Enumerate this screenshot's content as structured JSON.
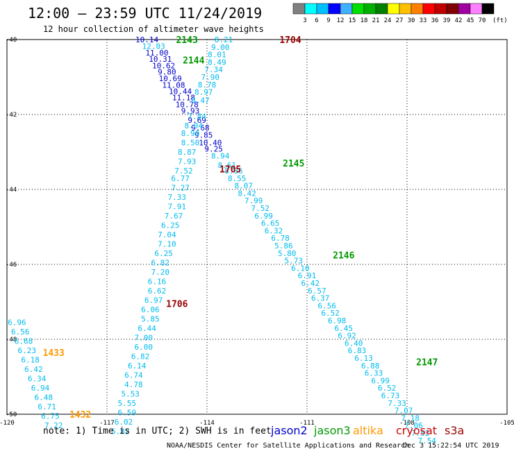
{
  "header": {
    "title": "12:00 – 23:59 UTC 11/24/2019",
    "subtitle": "12 hour collection of altimeter wave heights"
  },
  "colorbar": {
    "unit": "(ft)",
    "labels": [
      "3",
      "6",
      "9",
      "12",
      "15",
      "18",
      "21",
      "24",
      "27",
      "30",
      "33",
      "36",
      "39",
      "42",
      "45",
      "70"
    ],
    "colors": [
      "#808080",
      "#00ffff",
      "#00bfff",
      "#0000ff",
      "#40b0ff",
      "#00e000",
      "#00b000",
      "#008000",
      "#ffff00",
      "#ffc000",
      "#ff8000",
      "#ff0000",
      "#c00000",
      "#800000",
      "#a000a0",
      "#ff80ff",
      "#000000"
    ]
  },
  "footer": {
    "note": "note:  1) Time is in UTC;  2) SWH is in feet",
    "satellites": [
      {
        "name": "jason2",
        "color": "#0000cc"
      },
      {
        "name": "jason3",
        "color": "#009900"
      },
      {
        "name": "altika",
        "color": "#ff9900"
      },
      {
        "name": "cryosat",
        "color": "#cc0000"
      },
      {
        "name": "s3a",
        "color": "#990000"
      }
    ],
    "credit": "NOAA/NESDIS Center for Satellite Applications and Research",
    "timestamp": "Dec  3 15:22:54 UTC 2019"
  },
  "chart_data": {
    "type": "scatter",
    "title": "12:00 – 23:59 UTC 11/24/2019",
    "subtitle": "12 hour collection of altimeter wave heights",
    "xlim": [
      -120,
      -105
    ],
    "ylim": [
      -50,
      -40
    ],
    "x_ticks": [
      -120,
      -117,
      -114,
      -111,
      -108,
      -105
    ],
    "y_ticks": [
      -40,
      -42,
      -44,
      -46,
      -48,
      -50
    ],
    "grid": true,
    "unit": "ft",
    "track_labels": [
      {
        "text": "2143",
        "lon": -114.6,
        "lat": -40.0,
        "sat": "jason3"
      },
      {
        "text": "1704",
        "lon": -111.5,
        "lat": -40.0,
        "sat": "s3a"
      },
      {
        "text": "2144",
        "lon": -114.4,
        "lat": -40.55,
        "sat": "jason3"
      },
      {
        "text": "1705",
        "lon": -113.3,
        "lat": -43.45,
        "sat": "s3a"
      },
      {
        "text": "2145",
        "lon": -111.4,
        "lat": -43.3,
        "sat": "jason3"
      },
      {
        "text": "2146",
        "lon": -109.9,
        "lat": -45.75,
        "sat": "jason3"
      },
      {
        "text": "1706",
        "lon": -114.9,
        "lat": -47.05,
        "sat": "s3a"
      },
      {
        "text": "1433",
        "lon": -118.6,
        "lat": -48.35,
        "sat": "altika"
      },
      {
        "text": "2147",
        "lon": -107.4,
        "lat": -48.6,
        "sat": "jason3"
      },
      {
        "text": "1432",
        "lon": -117.8,
        "lat": -50.0,
        "sat": "altika"
      }
    ],
    "series": [
      {
        "name": "jason2",
        "color": "#0000cc",
        "points": [
          {
            "lon": -115.8,
            "lat": -40.0,
            "v": "10.14"
          },
          {
            "lon": -115.5,
            "lat": -40.35,
            "v": "11.00"
          },
          {
            "lon": -115.4,
            "lat": -40.52,
            "v": "10.31"
          },
          {
            "lon": -115.3,
            "lat": -40.69,
            "v": "10.62"
          },
          {
            "lon": -115.2,
            "lat": -40.86,
            "v": "9.80"
          },
          {
            "lon": -115.1,
            "lat": -41.04,
            "v": "10.69"
          },
          {
            "lon": -115.0,
            "lat": -41.21,
            "v": "11.08"
          },
          {
            "lon": -114.8,
            "lat": -41.38,
            "v": "10.44"
          },
          {
            "lon": -114.7,
            "lat": -41.55,
            "v": "11.18"
          },
          {
            "lon": -114.6,
            "lat": -41.73,
            "v": "10.78"
          },
          {
            "lon": -114.5,
            "lat": -41.9,
            "v": "9.93"
          },
          {
            "lon": -114.3,
            "lat": -42.15,
            "v": "9.69"
          },
          {
            "lon": -114.2,
            "lat": -42.35,
            "v": "9.68"
          },
          {
            "lon": -114.1,
            "lat": -42.55,
            "v": "9.85"
          },
          {
            "lon": -113.9,
            "lat": -42.75,
            "v": "10.40"
          },
          {
            "lon": -113.8,
            "lat": -42.92,
            "v": "9.25"
          }
        ]
      },
      {
        "name": "jason3",
        "color": "#00bbee",
        "points": [
          {
            "lon": -115.6,
            "lat": -40.18,
            "v": "12.03"
          }
        ]
      },
      {
        "name": "s3a",
        "color": "#00bbee",
        "points": [
          {
            "lon": -113.5,
            "lat": -40.0,
            "v": "8.21"
          },
          {
            "lon": -113.6,
            "lat": -40.2,
            "v": "9.00"
          },
          {
            "lon": -113.7,
            "lat": -40.4,
            "v": "8.01"
          },
          {
            "lon": -113.7,
            "lat": -40.6,
            "v": "8.49"
          },
          {
            "lon": -113.8,
            "lat": -40.8,
            "v": "7.34"
          },
          {
            "lon": -113.9,
            "lat": -41.0,
            "v": "7.90"
          },
          {
            "lon": -114.0,
            "lat": -41.2,
            "v": "8.78"
          },
          {
            "lon": -114.1,
            "lat": -41.4,
            "v": "8.97"
          },
          {
            "lon": -114.2,
            "lat": -41.62,
            "v": "8.47"
          },
          {
            "lon": -114.3,
            "lat": -42.05,
            "v": "7.84"
          },
          {
            "lon": -114.4,
            "lat": -42.3,
            "v": "8.04"
          },
          {
            "lon": -114.5,
            "lat": -42.5,
            "v": "8.90"
          },
          {
            "lon": -114.5,
            "lat": -42.75,
            "v": "8.50"
          },
          {
            "lon": -114.6,
            "lat": -43.0,
            "v": "8.87"
          },
          {
            "lon": -114.6,
            "lat": -43.25,
            "v": "7.93"
          },
          {
            "lon": -114.7,
            "lat": -43.5,
            "v": "7.52"
          },
          {
            "lon": -114.8,
            "lat": -43.7,
            "v": "6.77"
          },
          {
            "lon": -114.8,
            "lat": -43.95,
            "v": "7.27"
          },
          {
            "lon": -114.9,
            "lat": -44.2,
            "v": "7.33"
          },
          {
            "lon": -114.9,
            "lat": -44.45,
            "v": "7.91"
          },
          {
            "lon": -115.0,
            "lat": -44.7,
            "v": "7.67"
          },
          {
            "lon": -115.1,
            "lat": -44.95,
            "v": "6.25"
          },
          {
            "lon": -115.2,
            "lat": -45.2,
            "v": "7.04"
          },
          {
            "lon": -115.2,
            "lat": -45.45,
            "v": "7.10"
          },
          {
            "lon": -115.3,
            "lat": -45.7,
            "v": "6.25"
          },
          {
            "lon": -115.4,
            "lat": -45.95,
            "v": "6.82"
          },
          {
            "lon": -115.4,
            "lat": -46.2,
            "v": "7.20"
          },
          {
            "lon": -115.5,
            "lat": -46.45,
            "v": "6.16"
          },
          {
            "lon": -115.5,
            "lat": -46.7,
            "v": "6.62"
          },
          {
            "lon": -115.6,
            "lat": -46.95,
            "v": "6.97"
          },
          {
            "lon": -115.7,
            "lat": -47.2,
            "v": "6.06"
          },
          {
            "lon": -115.7,
            "lat": -47.45,
            "v": "5.85"
          },
          {
            "lon": -115.8,
            "lat": -47.7,
            "v": "6.44"
          },
          {
            "lon": -115.9,
            "lat": -47.95,
            "v": "7.00"
          },
          {
            "lon": -115.9,
            "lat": -48.2,
            "v": "6.00"
          },
          {
            "lon": -116.0,
            "lat": -48.45,
            "v": "6.82"
          },
          {
            "lon": -116.1,
            "lat": -48.7,
            "v": "6.14"
          },
          {
            "lon": -116.2,
            "lat": -48.95,
            "v": "6.74"
          },
          {
            "lon": -116.2,
            "lat": -49.2,
            "v": "4.78"
          },
          {
            "lon": -116.3,
            "lat": -49.45,
            "v": "5.53"
          },
          {
            "lon": -116.4,
            "lat": -49.7,
            "v": "5.55"
          },
          {
            "lon": -116.4,
            "lat": -49.95,
            "v": "6.59"
          },
          {
            "lon": -116.5,
            "lat": -50.2,
            "v": "6.02"
          },
          {
            "lon": -116.6,
            "lat": -50.45,
            "v": "5.82"
          },
          {
            "lon": -113.6,
            "lat": -43.1,
            "v": "8.94"
          },
          {
            "lon": -113.4,
            "lat": -43.35,
            "v": "8.61"
          },
          {
            "lon": -113.2,
            "lat": -43.5,
            "v": "8.86"
          },
          {
            "lon": -113.1,
            "lat": -43.7,
            "v": "8.55"
          },
          {
            "lon": -112.9,
            "lat": -43.9,
            "v": "8.07"
          },
          {
            "lon": -112.8,
            "lat": -44.1,
            "v": "8.42"
          },
          {
            "lon": -112.6,
            "lat": -44.3,
            "v": "7.99"
          },
          {
            "lon": -112.4,
            "lat": -44.5,
            "v": "7.52"
          },
          {
            "lon": -112.3,
            "lat": -44.7,
            "v": "6.99"
          },
          {
            "lon": -112.1,
            "lat": -44.9,
            "v": "6.65"
          },
          {
            "lon": -112.0,
            "lat": -45.1,
            "v": "6.32"
          },
          {
            "lon": -111.8,
            "lat": -45.3,
            "v": "6.78"
          },
          {
            "lon": -111.7,
            "lat": -45.5,
            "v": "5.86"
          },
          {
            "lon": -111.6,
            "lat": -45.7,
            "v": "5.80"
          },
          {
            "lon": -111.4,
            "lat": -45.9,
            "v": "5.73"
          },
          {
            "lon": -111.2,
            "lat": -46.1,
            "v": "6.10"
          },
          {
            "lon": -111.0,
            "lat": -46.3,
            "v": "6.91"
          },
          {
            "lon": -110.9,
            "lat": -46.5,
            "v": "6.42"
          },
          {
            "lon": -110.7,
            "lat": -46.7,
            "v": "6.57"
          },
          {
            "lon": -110.6,
            "lat": -46.9,
            "v": "6.37"
          },
          {
            "lon": -110.4,
            "lat": -47.1,
            "v": "6.56"
          },
          {
            "lon": -110.3,
            "lat": -47.3,
            "v": "6.52"
          },
          {
            "lon": -110.1,
            "lat": -47.5,
            "v": "6.98"
          },
          {
            "lon": -109.9,
            "lat": -47.7,
            "v": "6.45"
          },
          {
            "lon": -109.8,
            "lat": -47.9,
            "v": "6.92"
          },
          {
            "lon": -109.6,
            "lat": -48.1,
            "v": "6.40"
          },
          {
            "lon": -109.5,
            "lat": -48.3,
            "v": "6.83"
          },
          {
            "lon": -109.3,
            "lat": -48.5,
            "v": "6.13"
          },
          {
            "lon": -109.1,
            "lat": -48.7,
            "v": "6.88"
          },
          {
            "lon": -109.0,
            "lat": -48.9,
            "v": "6.33"
          },
          {
            "lon": -108.8,
            "lat": -49.1,
            "v": "6.99"
          },
          {
            "lon": -108.6,
            "lat": -49.3,
            "v": "6.52"
          },
          {
            "lon": -108.5,
            "lat": -49.5,
            "v": "6.73"
          },
          {
            "lon": -108.3,
            "lat": -49.7,
            "v": "7.33"
          },
          {
            "lon": -108.1,
            "lat": -49.9,
            "v": "7.07"
          },
          {
            "lon": -107.9,
            "lat": -50.1,
            "v": "7.18"
          },
          {
            "lon": -107.8,
            "lat": -50.3,
            "v": "7.06"
          },
          {
            "lon": -107.6,
            "lat": -50.5,
            "v": "7.52"
          },
          {
            "lon": -107.4,
            "lat": -50.7,
            "v": "7.54"
          }
        ]
      },
      {
        "name": "altika",
        "color": "#00bbee",
        "points": [
          {
            "lon": -119.7,
            "lat": -47.55,
            "v": "6.96"
          },
          {
            "lon": -119.6,
            "lat": -47.8,
            "v": "6.56"
          },
          {
            "lon": -119.5,
            "lat": -48.05,
            "v": "6.68"
          },
          {
            "lon": -119.4,
            "lat": -48.3,
            "v": "6.23"
          },
          {
            "lon": -119.3,
            "lat": -48.55,
            "v": "6.18"
          },
          {
            "lon": -119.2,
            "lat": -48.8,
            "v": "6.42"
          },
          {
            "lon": -119.1,
            "lat": -49.05,
            "v": "6.34"
          },
          {
            "lon": -119.0,
            "lat": -49.3,
            "v": "6.94"
          },
          {
            "lon": -118.9,
            "lat": -49.55,
            "v": "6.48"
          },
          {
            "lon": -118.8,
            "lat": -49.8,
            "v": "6.71"
          },
          {
            "lon": -118.7,
            "lat": -50.05,
            "v": "6.75"
          },
          {
            "lon": -118.6,
            "lat": -50.3,
            "v": "7.22"
          }
        ]
      }
    ]
  }
}
